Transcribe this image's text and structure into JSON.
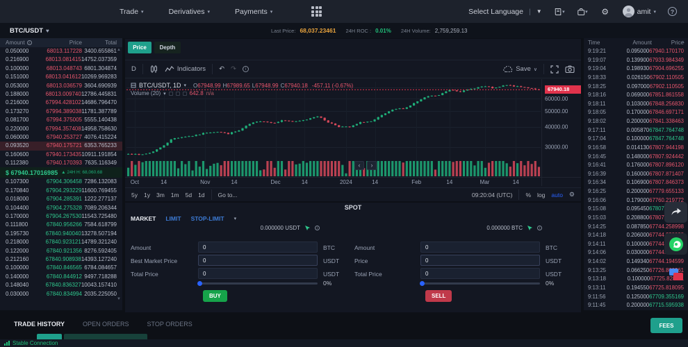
{
  "nav": {
    "menu": [
      {
        "label": "Trade"
      },
      {
        "label": "Derivatives"
      },
      {
        "label": "Payments"
      }
    ],
    "language": {
      "label": "Select Language"
    },
    "user": {
      "name": "amit"
    }
  },
  "ticker": {
    "pair": "BTC/USDT",
    "last_price_label": "Last Price:",
    "last_price": "68,037.23461",
    "roc_label": "24H ROC :",
    "roc": "0.01%",
    "volume_label": "24H Volume:",
    "volume": "2,759,259.13"
  },
  "orderbook": {
    "headers": [
      "Amount",
      "Price",
      "Total"
    ],
    "highlight_index": 11,
    "asks": [
      [
        "0.050000",
        "68013.117228",
        "3400.655861"
      ],
      [
        "0.216900",
        "68013.081415",
        "14752.037359"
      ],
      [
        "0.100000",
        "68013.048743",
        "6801.304874"
      ],
      [
        "0.151000",
        "68013.041612",
        "10269.969283"
      ],
      [
        "0.053000",
        "68013.036579",
        "3604.690939"
      ],
      [
        "0.188000",
        "68013.009740",
        "12786.445831"
      ],
      [
        "0.216000",
        "67994.428102",
        "14686.796470"
      ],
      [
        "0.173270",
        "67994.389038",
        "11781.387789"
      ],
      [
        "0.081700",
        "67994.375005",
        "5555.140438"
      ],
      [
        "0.220000",
        "67994.357408",
        "14958.758630"
      ],
      [
        "0.060000",
        "67940.253727",
        "4076.415224"
      ],
      [
        "0.093520",
        "67940.175721",
        "6353.765233"
      ],
      [
        "0.160600",
        "67940.173435",
        "10911.191854"
      ],
      [
        "0.112380",
        "67940.170393",
        "7635.116349"
      ]
    ],
    "mid": {
      "price": "$ 67940.17016985",
      "sub": "24H H: 68,060.68"
    },
    "bids": [
      [
        "0.107300",
        "67904.306458",
        "7286.132083"
      ],
      [
        "0.170840",
        "67904.293229",
        "11600.769455"
      ],
      [
        "0.018000",
        "67904.285391",
        "1222.277137"
      ],
      [
        "0.104400",
        "67904.275328",
        "7089.206344"
      ],
      [
        "0.170000",
        "67904.267530",
        "11543.725480"
      ],
      [
        "0.111800",
        "67840.956266",
        "7584.618799"
      ],
      [
        "0.195730",
        "67840.940040",
        "13278.507194"
      ],
      [
        "0.218000",
        "67840.923121",
        "14789.321240"
      ],
      [
        "0.122000",
        "67840.921356",
        "8276.592405"
      ],
      [
        "0.212160",
        "67840.908938",
        "14393.127240"
      ],
      [
        "0.100000",
        "67840.846565",
        "6784.084657"
      ],
      [
        "0.140000",
        "67840.844912",
        "9497.718288"
      ],
      [
        "0.148040",
        "67840.836327",
        "10043.157410"
      ],
      [
        "0.030000",
        "67840.834994",
        "2035.225050"
      ]
    ]
  },
  "chart": {
    "tabs": {
      "price": "Price",
      "depth": "Depth"
    },
    "toolbar": {
      "interval": "D",
      "indicators": "Indicators",
      "save": "Save"
    },
    "legend": {
      "symbol": "BTC/USDT, 1D",
      "ohlc": [
        {
          "k": "O",
          "v": "67948.99"
        },
        {
          "k": "H",
          "v": "67989.65"
        },
        {
          "k": "L",
          "v": "67948.99"
        },
        {
          "k": "C",
          "v": "67940.18"
        }
      ],
      "change": "-457.11 (-0.67%)"
    },
    "volume_legend": {
      "label": "Volume (20)",
      "value": "642.8",
      "na": "n/a"
    },
    "price_tag": "67940.18",
    "ranges": [
      "5y",
      "1y",
      "3m",
      "1m",
      "5d",
      "1d"
    ],
    "goto": "Go to...",
    "clock": "09:20:04 (UTC)",
    "scales": [
      "%",
      "log",
      "auto"
    ],
    "chart_data": {
      "type": "candlestick",
      "symbol": "BTC/USDT",
      "interval": "1D",
      "candle_count": 116,
      "price_anchors": [
        27300,
        26700,
        27600,
        29900,
        33800,
        34700,
        35200,
        36800,
        37300,
        36200,
        37900,
        41800,
        43600,
        42200,
        44000,
        42800,
        44200,
        46800,
        42700,
        40100,
        39800,
        42800,
        43200,
        47800,
        51400,
        52300,
        57200,
        61800,
        62800,
        68200,
        66100,
        69000,
        71500,
        69200,
        72600,
        71100,
        69900,
        67940
      ],
      "last_price": 67940.18,
      "y_axis": {
        "scale": "log",
        "min": 25000,
        "max": 76000,
        "ticks": [
          {
            "label": "70000.00",
            "value": 70000
          },
          {
            "label": "60000.00",
            "value": 60000
          },
          {
            "label": "50000.00",
            "value": 50000
          },
          {
            "label": "40000.00",
            "value": 40000
          },
          {
            "label": "30000.00",
            "value": 30000
          }
        ]
      },
      "x_ticks": [
        {
          "label": "Oct",
          "pos": 0.02
        },
        {
          "label": "14",
          "pos": 0.09
        },
        {
          "label": "Nov",
          "pos": 0.19
        },
        {
          "label": "14",
          "pos": 0.26
        },
        {
          "label": "Dec",
          "pos": 0.36
        },
        {
          "label": "14",
          "pos": 0.43
        },
        {
          "label": "2024",
          "pos": 0.53
        },
        {
          "label": "14",
          "pos": 0.6
        },
        {
          "label": "Feb",
          "pos": 0.7
        },
        {
          "label": "14",
          "pos": 0.78
        },
        {
          "label": "Mar",
          "pos": 0.865
        },
        {
          "label": "14",
          "pos": 0.94
        }
      ]
    }
  },
  "spot": {
    "title": "SPOT",
    "tabs": [
      "MARKET",
      "LIMIT",
      "STOP-LIMIT"
    ],
    "buy": {
      "balance": "0.000000 USDT",
      "fields": [
        {
          "label": "Amount",
          "value": "0",
          "unit": "BTC"
        },
        {
          "label": "Best Market Price",
          "value": "0",
          "unit": "USDT"
        },
        {
          "label": "Total Price",
          "value": "0",
          "unit": "USDT"
        }
      ],
      "percent": "0%",
      "button": "BUY"
    },
    "sell": {
      "balance": "0.000000 BTC",
      "fields": [
        {
          "label": "Amount",
          "value": "0",
          "unit": "BTC"
        },
        {
          "label": "Price",
          "value": "0",
          "unit": "USDT"
        },
        {
          "label": "Total Price",
          "value": "0",
          "unit": "USDT"
        }
      ],
      "percent": "0%",
      "button": "SELL"
    }
  },
  "trades": {
    "headers": [
      "Time",
      "Amount",
      "Price"
    ],
    "rows": [
      [
        "9:19:21",
        "0.095000",
        "67940.170170",
        "down"
      ],
      [
        "9:19:07",
        "0.139900",
        "67933.984349",
        "down"
      ],
      [
        "9:19:04",
        "0.198930",
        "67904.696255",
        "down"
      ],
      [
        "9:18:33",
        "0.026150",
        "67902.110505",
        "down"
      ],
      [
        "9:18:25",
        "0.097000",
        "67902.110505",
        "down"
      ],
      [
        "9:18:16",
        "0.069000",
        "67851.861558",
        "down"
      ],
      [
        "9:18:11",
        "0.103000",
        "67848.256830",
        "down"
      ],
      [
        "9:18:05",
        "0.170000",
        "67846.697171",
        "down"
      ],
      [
        "9:18:02",
        "0.200000",
        "67841.338463",
        "down"
      ],
      [
        "9:17:11",
        "0.005870",
        "67847.764748",
        "up"
      ],
      [
        "9:17:04",
        "0.100000",
        "67847.764748",
        "up"
      ],
      [
        "9:16:58",
        "0.014130",
        "67807.944198",
        "down"
      ],
      [
        "9:16:45",
        "0.148000",
        "67807.924442",
        "down"
      ],
      [
        "9:16:41",
        "0.176000",
        "67807.896120",
        "down"
      ],
      [
        "9:16:39",
        "0.160000",
        "67807.871407",
        "down"
      ],
      [
        "9:16:34",
        "0.106900",
        "67807.846373",
        "down"
      ],
      [
        "9:16:25",
        "0.200000",
        "67779.655133",
        "down"
      ],
      [
        "9:16:06",
        "0.179000",
        "67760.219772",
        "down"
      ],
      [
        "9:15:08",
        "0.095450",
        "67807.432838",
        "up"
      ],
      [
        "9:15:03",
        "0.208800",
        "67807.474769",
        "down"
      ],
      [
        "9:14:25",
        "0.087850",
        "67744.258998",
        "down"
      ],
      [
        "9:14:18",
        "0.206000",
        "67744.238098",
        "down"
      ],
      [
        "9:14:11",
        "0.100000",
        "67744.224817",
        "down"
      ],
      [
        "9:14:06",
        "0.030000",
        "67744.203138",
        "down"
      ],
      [
        "9:14:02",
        "0.149340",
        "67744.194599",
        "down"
      ],
      [
        "9:13:25",
        "0.066250",
        "67726.860361",
        "down"
      ],
      [
        "9:13:18",
        "0.100000",
        "67725.828111",
        "down"
      ],
      [
        "9:13:11",
        "0.194550",
        "67725.818095",
        "down"
      ],
      [
        "9:11:56",
        "0.125000",
        "67709.355169",
        "up"
      ],
      [
        "9:11:45",
        "0.200000",
        "67715.595938",
        "up"
      ]
    ]
  },
  "bottom": {
    "tabs": [
      "TRADE HISTORY",
      "OPEN ORDERS",
      "STOP ORDERS"
    ],
    "fees": "FEES"
  },
  "status": "Stable Connection",
  "icons": {
    "chevron_down": "▾",
    "dropdown_tri": "▼",
    "heart": "♥",
    "gear": "⚙",
    "help": "?",
    "info": "i",
    "undo": "↶",
    "redo": "↷",
    "left": "‹",
    "right": "›",
    "up_tri": "▲",
    "down_tri": "▼",
    "save_caret": "∨"
  },
  "colors": {
    "up": "#2fc78d",
    "down": "#e8566d",
    "candle_up": "#1fae79",
    "candle_down": "#d8495a",
    "accent_teal": "#1fa08c",
    "amber": "#e8a33d",
    "blue_link": "#3d7bd4",
    "tag_red": "#e0334c",
    "buy_green": "#16a34a",
    "sell_red": "#c0394a"
  }
}
